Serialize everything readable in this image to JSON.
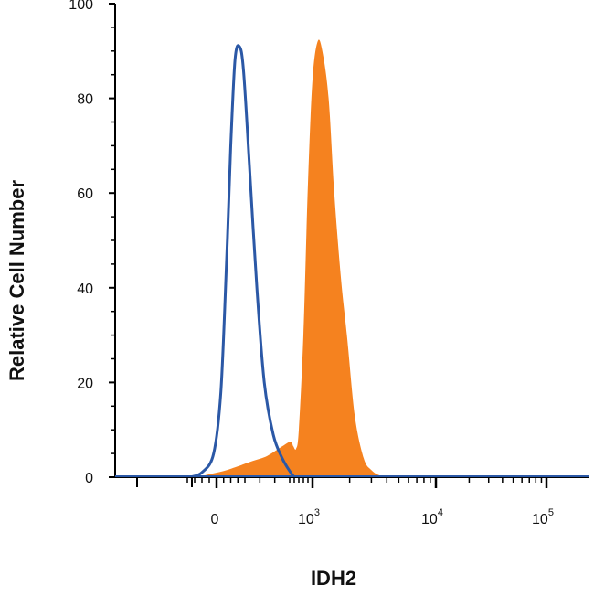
{
  "chart_data": {
    "type": "area",
    "title": "",
    "xlabel": "IDH2",
    "ylabel": "Relative Cell Number",
    "x_scale": "biexponential",
    "ylim": [
      0,
      100
    ],
    "grid": false,
    "legend": "none",
    "y_ticks": [
      "0",
      "20",
      "40",
      "60",
      "80",
      "100"
    ],
    "x_ticks": [
      {
        "base": "0",
        "exp": ""
      },
      {
        "base": "10",
        "exp": "3"
      },
      {
        "base": "10",
        "exp": "4"
      },
      {
        "base": "10",
        "exp": "5"
      }
    ],
    "series": [
      {
        "style": "outline",
        "color": "#2b58a6",
        "points": [
          [
            -180,
            0
          ],
          [
            -100,
            1
          ],
          [
            -20,
            5
          ],
          [
            30,
            18
          ],
          [
            70,
            45
          ],
          [
            100,
            70
          ],
          [
            130,
            88
          ],
          [
            160,
            91
          ],
          [
            190,
            86
          ],
          [
            230,
            66
          ],
          [
            280,
            40
          ],
          [
            330,
            20
          ],
          [
            390,
            9
          ],
          [
            450,
            4
          ],
          [
            520,
            1
          ],
          [
            600,
            0
          ]
        ]
      },
      {
        "style": "filled",
        "color": "#f5821f",
        "points": [
          [
            -130,
            0
          ],
          [
            -50,
            0.6
          ],
          [
            50,
            1.3
          ],
          [
            150,
            2.3
          ],
          [
            250,
            3.4
          ],
          [
            350,
            4.5
          ],
          [
            450,
            6.5
          ],
          [
            520,
            7.5
          ],
          [
            580,
            6.5
          ],
          [
            640,
            6
          ],
          [
            700,
            10
          ],
          [
            800,
            30
          ],
          [
            900,
            62
          ],
          [
            1000,
            84
          ],
          [
            1100,
            92
          ],
          [
            1200,
            90
          ],
          [
            1350,
            80
          ],
          [
            1500,
            60
          ],
          [
            1700,
            42
          ],
          [
            1900,
            30
          ],
          [
            2200,
            13
          ],
          [
            2600,
            4
          ],
          [
            3000,
            1.5
          ],
          [
            3600,
            0.3
          ],
          [
            5000,
            0
          ]
        ]
      }
    ]
  }
}
